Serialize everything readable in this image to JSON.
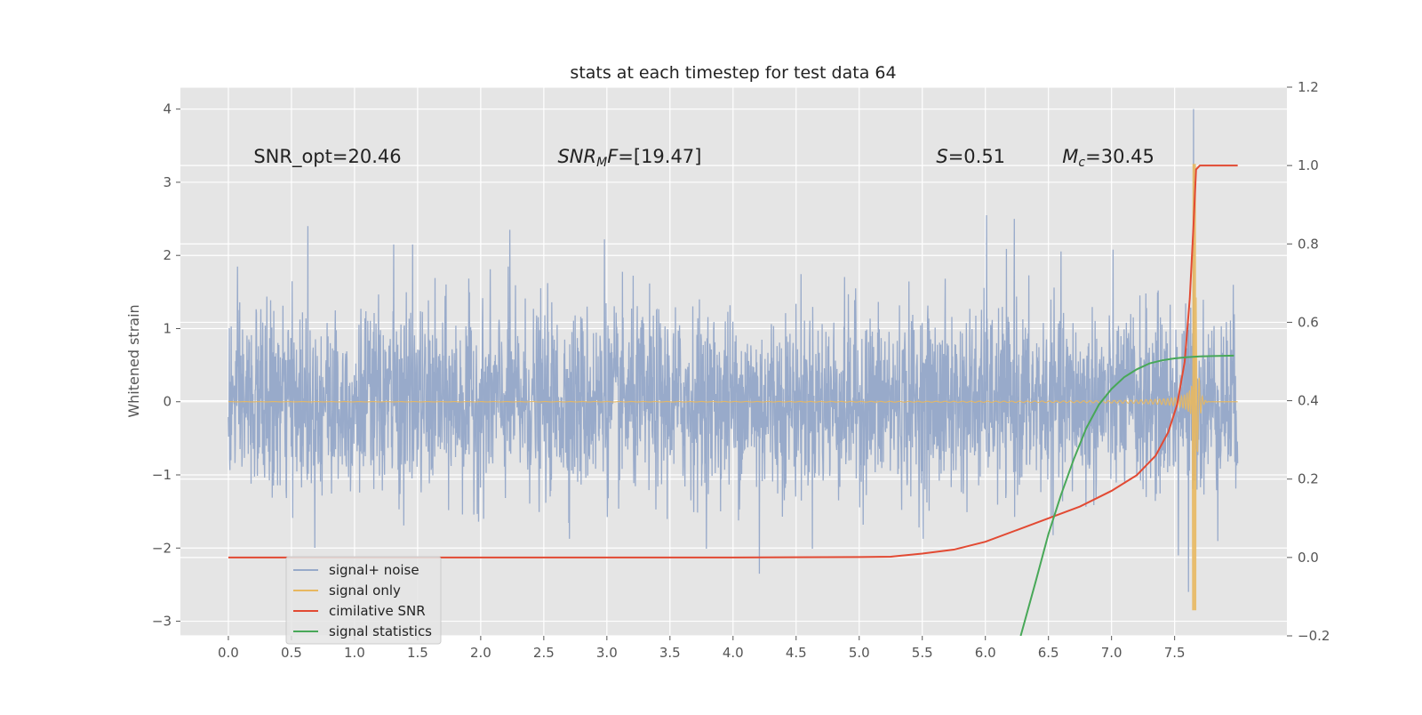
{
  "chart_data": {
    "type": "line",
    "title": "stats at each timestep for test data 64",
    "xlabel": "",
    "ylabel": "Whitened strain",
    "y2label": "",
    "xlim": [
      -0.38,
      8.39
    ],
    "ylim": [
      -3.2,
      4.3
    ],
    "y2lim": [
      -0.2,
      1.2
    ],
    "xticks": [
      0.0,
      0.5,
      1.0,
      1.5,
      2.0,
      2.5,
      3.0,
      3.5,
      4.0,
      4.5,
      5.0,
      5.5,
      6.0,
      6.5,
      7.0,
      7.5
    ],
    "xtick_labels": [
      "0.0",
      "0.5",
      "1.0",
      "1.5",
      "2.0",
      "2.5",
      "3.0",
      "3.5",
      "4.0",
      "4.5",
      "5.0",
      "5.5",
      "6.0",
      "6.5",
      "7.0",
      "7.5"
    ],
    "yticks": [
      -3,
      -2,
      -1,
      0,
      1,
      2,
      3,
      4
    ],
    "ytick_labels": [
      "−3",
      "−2",
      "−1",
      "0",
      "1",
      "2",
      "3",
      "4"
    ],
    "y2ticks": [
      -0.2,
      0.0,
      0.2,
      0.4,
      0.6,
      0.8,
      1.0,
      1.2
    ],
    "y2tick_labels": [
      "−0.2",
      "0.0",
      "0.2",
      "0.4",
      "0.6",
      "0.8",
      "1.0",
      "1.2"
    ],
    "grid": true,
    "legend_position": "lower-left",
    "annotations": [
      {
        "text": "SNR_opt=20.46",
        "x": 0.2,
        "y": 3.35
      },
      {
        "text": "SNR_MF=[19.47]",
        "x": 2.61,
        "y": 3.35
      },
      {
        "text": "S=0.51",
        "x": 5.61,
        "y": 3.35
      },
      {
        "text": "M_c=30.45",
        "x": 6.61,
        "y": 3.35
      }
    ],
    "noise_band": {
      "t_start": 0.0,
      "t_end": 8.0,
      "typical_envelope": [
        -1.3,
        1.5
      ],
      "max": 4.0,
      "min": -2.9
    },
    "noise_peaks": [
      {
        "x": 0.63,
        "y": 2.4
      },
      {
        "x": 1.31,
        "y": 2.15
      },
      {
        "x": 1.46,
        "y": 2.15
      },
      {
        "x": 2.23,
        "y": 2.35
      },
      {
        "x": 2.98,
        "y": 2.22
      },
      {
        "x": 4.21,
        "y": -2.35
      },
      {
        "x": 6.01,
        "y": 2.55
      },
      {
        "x": 6.23,
        "y": 2.5
      },
      {
        "x": 7.53,
        "y": -2.1
      },
      {
        "x": 7.65,
        "y": 4.0
      },
      {
        "x": 7.61,
        "y": -2.6
      },
      {
        "x": 0.02,
        "y": -0.8
      }
    ],
    "signal_chirp": {
      "t_merge": 7.67,
      "t_end": 8.0,
      "peak_amplitude": 3.25,
      "min_amplitude": -2.85
    },
    "series": [
      {
        "name": "signal+ noise",
        "color": "#98aaca",
        "axis": "left"
      },
      {
        "name": "signal only",
        "color": "#e8b860",
        "axis": "left"
      },
      {
        "name": "cimilative SNR",
        "color": "#e24a33",
        "axis": "right",
        "x": [
          0.0,
          1.0,
          2.0,
          3.0,
          4.0,
          5.0,
          5.25,
          5.5,
          5.75,
          6.0,
          6.25,
          6.5,
          6.75,
          7.0,
          7.2,
          7.35,
          7.45,
          7.52,
          7.58,
          7.62,
          7.65,
          7.67,
          7.7,
          8.0
        ],
        "y": [
          0.0,
          0.0,
          0.0,
          0.0,
          0.0,
          0.001,
          0.002,
          0.01,
          0.02,
          0.04,
          0.07,
          0.1,
          0.13,
          0.17,
          0.21,
          0.26,
          0.32,
          0.39,
          0.5,
          0.66,
          0.85,
          0.99,
          1.0,
          1.0
        ]
      },
      {
        "name": "signal statistics",
        "color": "#48a858",
        "axis": "right",
        "x": [
          6.28,
          6.4,
          6.5,
          6.6,
          6.7,
          6.8,
          6.9,
          7.0,
          7.1,
          7.2,
          7.3,
          7.4,
          7.5,
          7.6,
          7.7,
          7.8,
          7.97
        ],
        "y": [
          -0.2,
          -0.06,
          0.06,
          0.16,
          0.25,
          0.33,
          0.39,
          0.43,
          0.46,
          0.48,
          0.495,
          0.503,
          0.508,
          0.511,
          0.513,
          0.514,
          0.515
        ]
      }
    ]
  }
}
